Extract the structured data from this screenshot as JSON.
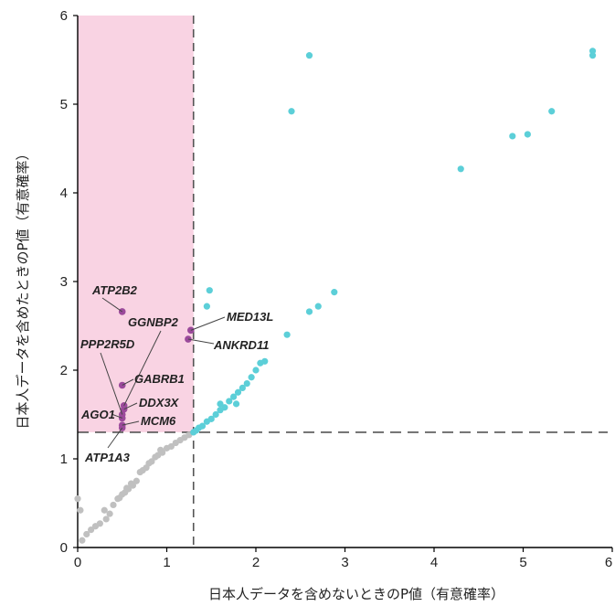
{
  "chart_data": {
    "type": "scatter",
    "xlabel": "日本人データを含めないときのP値（有意確率）",
    "ylabel": "日本人データを含めたときのP値（有意確率）",
    "xlim": [
      0,
      6
    ],
    "ylim": [
      0,
      6
    ],
    "x_ticks": [
      "0",
      "1",
      "2",
      "3",
      "4",
      "5",
      "6"
    ],
    "y_ticks": [
      "0",
      "1",
      "2",
      "3",
      "4",
      "5",
      "6"
    ],
    "threshold": 1.3,
    "highlight_region": {
      "x": [
        0,
        1.3
      ],
      "y": [
        1.3,
        6
      ],
      "color": "#f9d3e3"
    },
    "colors": {
      "gray": "#c0c0c0",
      "cyan": "#5ccfd8",
      "purple": "#9b4a9b",
      "dash": "#555555"
    },
    "series": [
      {
        "color_key": "gray",
        "points": [
          [
            0.0,
            0.55
          ],
          [
            0.03,
            0.42
          ],
          [
            0.05,
            0.08
          ],
          [
            0.1,
            0.15
          ],
          [
            0.15,
            0.2
          ],
          [
            0.2,
            0.24
          ],
          [
            0.25,
            0.27
          ],
          [
            0.3,
            0.42
          ],
          [
            0.32,
            0.32
          ],
          [
            0.36,
            0.38
          ],
          [
            0.4,
            0.48
          ],
          [
            0.45,
            0.55
          ],
          [
            0.47,
            0.56
          ],
          [
            0.5,
            0.6
          ],
          [
            0.53,
            0.62
          ],
          [
            0.55,
            0.67
          ],
          [
            0.57,
            0.66
          ],
          [
            0.6,
            0.72
          ],
          [
            0.62,
            0.7
          ],
          [
            0.66,
            0.75
          ],
          [
            0.7,
            0.85
          ],
          [
            0.73,
            0.87
          ],
          [
            0.77,
            0.9
          ],
          [
            0.8,
            0.95
          ],
          [
            0.83,
            0.97
          ],
          [
            0.87,
            1.02
          ],
          [
            0.9,
            1.04
          ],
          [
            0.95,
            1.07
          ],
          [
            1.0,
            1.12
          ],
          [
            1.05,
            1.14
          ],
          [
            1.1,
            1.18
          ],
          [
            1.15,
            1.21
          ],
          [
            1.2,
            1.24
          ],
          [
            1.25,
            1.27
          ],
          [
            0.93,
            1.1
          ]
        ]
      },
      {
        "color_key": "cyan",
        "points": [
          [
            1.3,
            1.3
          ],
          [
            1.33,
            1.32
          ],
          [
            1.36,
            1.35
          ],
          [
            1.4,
            1.37
          ],
          [
            1.45,
            1.42
          ],
          [
            1.5,
            1.45
          ],
          [
            1.55,
            1.5
          ],
          [
            1.6,
            1.55
          ],
          [
            1.65,
            1.58
          ],
          [
            1.7,
            1.65
          ],
          [
            1.75,
            1.7
          ],
          [
            1.8,
            1.75
          ],
          [
            1.85,
            1.8
          ],
          [
            1.9,
            1.85
          ],
          [
            1.95,
            1.92
          ],
          [
            2.0,
            2.0
          ],
          [
            2.05,
            2.08
          ],
          [
            2.1,
            2.1
          ],
          [
            1.78,
            1.62
          ],
          [
            1.6,
            1.62
          ],
          [
            1.45,
            2.72
          ],
          [
            1.48,
            2.9
          ],
          [
            2.35,
            2.4
          ],
          [
            2.6,
            2.66
          ],
          [
            2.7,
            2.72
          ],
          [
            2.88,
            2.88
          ],
          [
            2.4,
            4.92
          ],
          [
            2.6,
            5.55
          ],
          [
            4.3,
            4.27
          ],
          [
            4.88,
            4.64
          ],
          [
            5.05,
            4.66
          ],
          [
            5.32,
            4.92
          ],
          [
            5.78,
            5.55
          ],
          [
            5.78,
            5.6
          ]
        ]
      }
    ],
    "highlighted_genes": [
      {
        "name": "ATP2B2",
        "x": 0.5,
        "y": 2.66
      },
      {
        "name": "GGNBP2",
        "x": 0.52,
        "y": 1.6
      },
      {
        "name": "PPP2R5D",
        "x": 0.5,
        "y": 1.5
      },
      {
        "name": "GABRB1",
        "x": 0.5,
        "y": 1.83
      },
      {
        "name": "DDX3X",
        "x": 0.52,
        "y": 1.56
      },
      {
        "name": "AGO1",
        "x": 0.5,
        "y": 1.46
      },
      {
        "name": "MCM6",
        "x": 0.5,
        "y": 1.38
      },
      {
        "name": "ATP1A3",
        "x": 0.5,
        "y": 1.35
      },
      {
        "name": "MED13L",
        "x": 1.27,
        "y": 2.45
      },
      {
        "name": "ANKRD11",
        "x": 1.24,
        "y": 2.35
      }
    ]
  }
}
